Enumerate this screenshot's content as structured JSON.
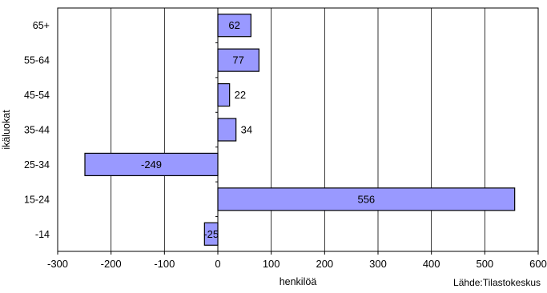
{
  "chart_data": {
    "type": "bar",
    "orientation": "horizontal",
    "categories": [
      "65+",
      "55-64",
      "45-54",
      "35-44",
      "25-34",
      "15-24",
      "-14"
    ],
    "values": [
      62,
      77,
      22,
      34,
      -249,
      556,
      -25
    ],
    "data_labels": [
      "62",
      "77",
      "22",
      "34",
      "-249",
      "556",
      "-25"
    ],
    "xlabel": "henkilöä",
    "ylabel": "ikäluokat",
    "xlim": [
      -300,
      600
    ],
    "xticks": [
      -300,
      -200,
      -100,
      0,
      100,
      200,
      300,
      400,
      500,
      600
    ],
    "grid": true,
    "bar_color": "#9999FF",
    "bar_edge_color": "#000000",
    "source": "Lähde:Tilastokeskus"
  }
}
